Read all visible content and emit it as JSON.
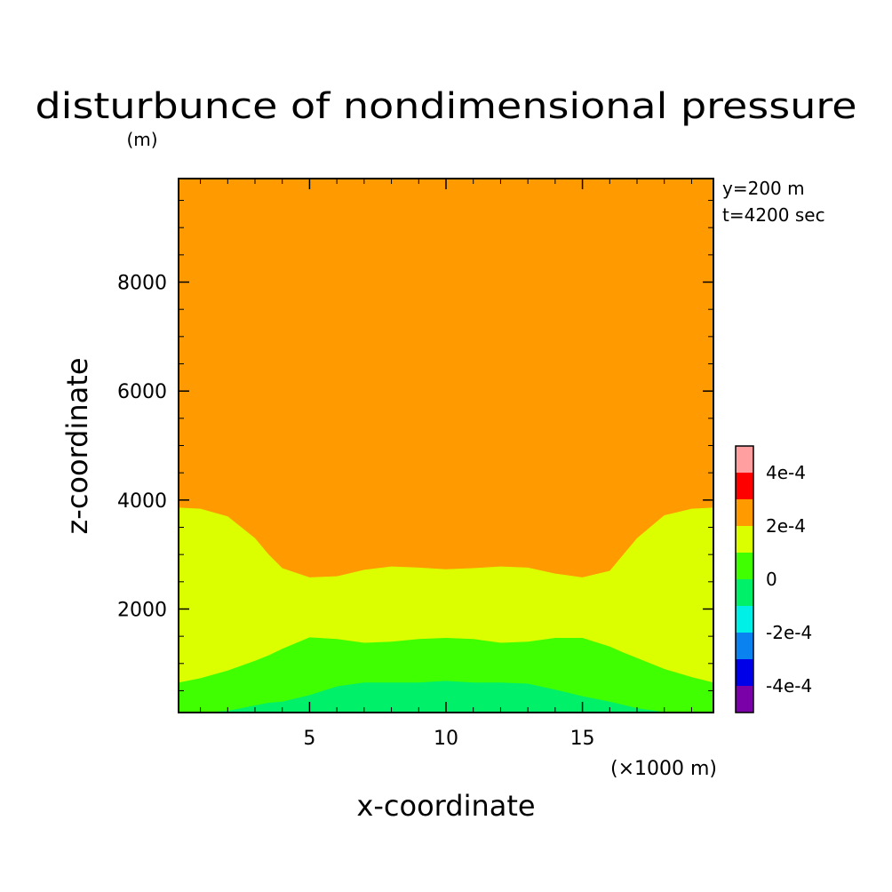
{
  "chart_data": {
    "type": "heatmap",
    "title": "disturbunce of nondimensional pressure",
    "xlabel": "x-coordinate",
    "ylabel": "z-coordinate",
    "ylabel_unit": "(m)",
    "xlabel_unit": "(×1000 m)",
    "annotations": [
      "y=200 m",
      "t=4200 sec"
    ],
    "xlim": [
      0.2,
      19.8
    ],
    "ylim": [
      100,
      9900
    ],
    "x_ticks": [
      5,
      10,
      15
    ],
    "x_tick_labels": [
      "5",
      "10",
      "15"
    ],
    "y_ticks": [
      2000,
      4000,
      6000,
      8000
    ],
    "y_tick_labels": [
      "2000",
      "4000",
      "6000",
      "8000"
    ],
    "colorbar": {
      "levels": [
        -0.0005,
        -0.0004,
        -0.0003,
        -0.0002,
        -0.0001,
        0,
        0.0001,
        0.0002,
        0.0003,
        0.0004,
        0.0005
      ],
      "colors": [
        "#7a00a8",
        "#0000e8",
        "#0a82f0",
        "#00f0e8",
        "#00f06a",
        "#40ff00",
        "#dcff00",
        "#ff9b00",
        "#ff0000",
        "#ff9f9f"
      ],
      "tick_values": [
        -0.0004,
        -0.0002,
        0,
        0.0002,
        0.0004
      ],
      "tick_labels": [
        "-4e-4",
        "-2e-4",
        "0",
        "2e-4",
        "4e-4"
      ]
    },
    "contour_boundaries_x": [
      0.2,
      1,
      2,
      3,
      3.5,
      4,
      5,
      6,
      7,
      8,
      9,
      10,
      11,
      12,
      13,
      14,
      15,
      16,
      16.5,
      17,
      18,
      19,
      19.8
    ],
    "contour_boundaries": [
      {
        "level": 0.0002,
        "z": [
          3860,
          3840,
          3700,
          3300,
          3000,
          2750,
          2580,
          2600,
          2720,
          2780,
          2760,
          2730,
          2750,
          2780,
          2760,
          2650,
          2580,
          2700,
          3000,
          3300,
          3720,
          3840,
          3860
        ]
      },
      {
        "level": 0.0001,
        "z": [
          650,
          730,
          870,
          1050,
          1150,
          1270,
          1480,
          1450,
          1380,
          1400,
          1450,
          1470,
          1450,
          1380,
          1400,
          1470,
          1470,
          1310,
          1200,
          1100,
          900,
          750,
          650
        ]
      },
      {
        "level": 0,
        "z": [
          100,
          100,
          130,
          230,
          280,
          300,
          420,
          580,
          650,
          650,
          650,
          680,
          650,
          650,
          630,
          520,
          400,
          300,
          240,
          180,
          110,
          100,
          100
        ]
      }
    ],
    "region_colors": [
      "#ff9b00",
      "#dcff00",
      "#40ff00",
      "#00f06a"
    ]
  }
}
